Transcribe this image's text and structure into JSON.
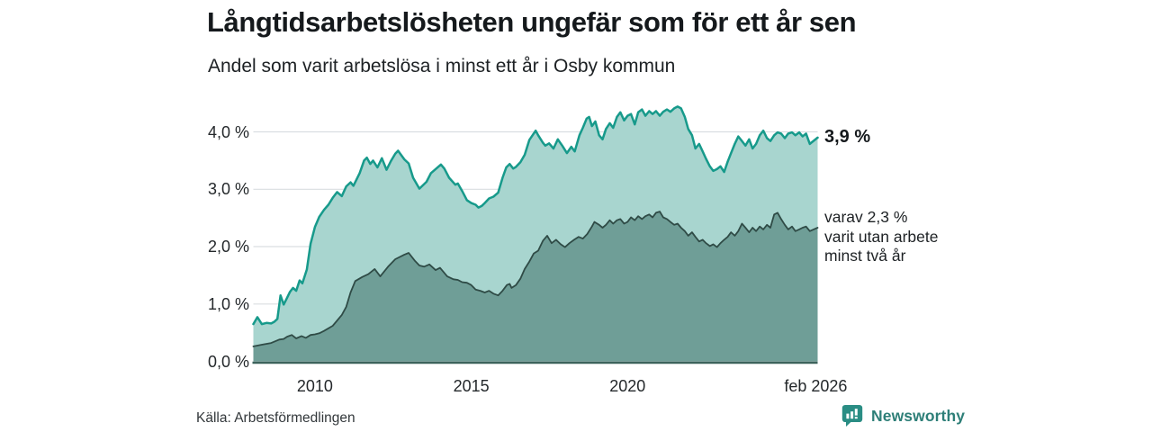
{
  "header": {
    "title": "Långtidsarbetslösheten ungefär som för ett år sen",
    "subtitle": "Andel som varit arbetslösa i minst ett år i Osby kommun"
  },
  "footer": {
    "source": "Källa: Arbetsförmedlingen",
    "brand": "Newsworthy",
    "brand_color": "#2e7f78"
  },
  "chart_data": {
    "type": "area",
    "title": "Andel som varit arbetslösa i minst ett år i Osby kommun",
    "xlabel": "",
    "ylabel": "",
    "xlim": [
      2008.03,
      2026.08
    ],
    "ylim": [
      0,
      4.55
    ],
    "grid": "horizontal",
    "legend_position": "none",
    "colors": {
      "grid": "#dadee1",
      "baseline": "#3d635c",
      "accent_teal": "#179a8b",
      "dark_slate": "#2f4b46"
    },
    "y_ticks": [
      {
        "label": "0,0 %",
        "value": 0
      },
      {
        "label": "1,0 %",
        "value": 1
      },
      {
        "label": "2,0 %",
        "value": 2
      },
      {
        "label": "3,0 %",
        "value": 3
      },
      {
        "label": "4,0 %",
        "value": 4
      }
    ],
    "x_ticks": [
      {
        "label": "2010",
        "value": 2010
      },
      {
        "label": "2015",
        "value": 2015
      },
      {
        "label": "2020",
        "value": 2020
      },
      {
        "label": "feb 2026",
        "value": 2026.02
      }
    ],
    "annotations": {
      "latest_label": "3,9 %",
      "detail": [
        "varav 2,3 %",
        "varit utan arbete",
        "minst två år"
      ]
    },
    "series": [
      {
        "id": "minst-ett-ar",
        "name": "Arbetslösa minst ett år",
        "color": "#179a8b",
        "fill": "#a8d5cf",
        "stroke_width": 2.5,
        "latest_value": 3.9,
        "points": [
          [
            2008.03,
            0.65
          ],
          [
            2008.16,
            0.77
          ],
          [
            2008.3,
            0.65
          ],
          [
            2008.45,
            0.67
          ],
          [
            2008.6,
            0.66
          ],
          [
            2008.7,
            0.69
          ],
          [
            2008.8,
            0.74
          ],
          [
            2008.9,
            1.15
          ],
          [
            2009.0,
            0.99
          ],
          [
            2009.1,
            1.1
          ],
          [
            2009.2,
            1.21
          ],
          [
            2009.3,
            1.28
          ],
          [
            2009.4,
            1.23
          ],
          [
            2009.51,
            1.41
          ],
          [
            2009.6,
            1.36
          ],
          [
            2009.74,
            1.6
          ],
          [
            2009.86,
            2.05
          ],
          [
            2010.0,
            2.34
          ],
          [
            2010.14,
            2.52
          ],
          [
            2010.29,
            2.64
          ],
          [
            2010.43,
            2.73
          ],
          [
            2010.57,
            2.85
          ],
          [
            2010.71,
            2.95
          ],
          [
            2010.86,
            2.88
          ],
          [
            2011.0,
            3.05
          ],
          [
            2011.14,
            3.12
          ],
          [
            2011.23,
            3.06
          ],
          [
            2011.43,
            3.28
          ],
          [
            2011.57,
            3.5
          ],
          [
            2011.66,
            3.55
          ],
          [
            2011.77,
            3.44
          ],
          [
            2011.86,
            3.5
          ],
          [
            2012.0,
            3.38
          ],
          [
            2012.14,
            3.54
          ],
          [
            2012.29,
            3.34
          ],
          [
            2012.43,
            3.49
          ],
          [
            2012.57,
            3.62
          ],
          [
            2012.66,
            3.67
          ],
          [
            2012.86,
            3.52
          ],
          [
            2013.0,
            3.45
          ],
          [
            2013.14,
            3.2
          ],
          [
            2013.34,
            3.01
          ],
          [
            2013.57,
            3.13
          ],
          [
            2013.71,
            3.28
          ],
          [
            2013.86,
            3.35
          ],
          [
            2014.03,
            3.43
          ],
          [
            2014.14,
            3.36
          ],
          [
            2014.29,
            3.2
          ],
          [
            2014.49,
            3.08
          ],
          [
            2014.57,
            3.1
          ],
          [
            2014.71,
            2.97
          ],
          [
            2014.86,
            2.81
          ],
          [
            2015.0,
            2.76
          ],
          [
            2015.14,
            2.73
          ],
          [
            2015.23,
            2.68
          ],
          [
            2015.34,
            2.71
          ],
          [
            2015.43,
            2.76
          ],
          [
            2015.57,
            2.84
          ],
          [
            2015.71,
            2.87
          ],
          [
            2015.86,
            2.94
          ],
          [
            2016.0,
            3.2
          ],
          [
            2016.12,
            3.38
          ],
          [
            2016.23,
            3.44
          ],
          [
            2016.34,
            3.36
          ],
          [
            2016.43,
            3.39
          ],
          [
            2016.57,
            3.47
          ],
          [
            2016.71,
            3.6
          ],
          [
            2016.86,
            3.86
          ],
          [
            2017.06,
            4.02
          ],
          [
            2017.14,
            3.94
          ],
          [
            2017.29,
            3.81
          ],
          [
            2017.37,
            3.76
          ],
          [
            2017.49,
            3.8
          ],
          [
            2017.63,
            3.71
          ],
          [
            2017.77,
            3.87
          ],
          [
            2017.91,
            3.76
          ],
          [
            2018.06,
            3.63
          ],
          [
            2018.2,
            3.74
          ],
          [
            2018.31,
            3.66
          ],
          [
            2018.46,
            3.94
          ],
          [
            2018.57,
            4.07
          ],
          [
            2018.69,
            4.23
          ],
          [
            2018.77,
            4.26
          ],
          [
            2018.86,
            4.1
          ],
          [
            2018.97,
            4.18
          ],
          [
            2019.09,
            3.94
          ],
          [
            2019.2,
            3.87
          ],
          [
            2019.31,
            4.05
          ],
          [
            2019.43,
            4.15
          ],
          [
            2019.54,
            4.07
          ],
          [
            2019.66,
            4.26
          ],
          [
            2019.77,
            4.34
          ],
          [
            2019.89,
            4.2
          ],
          [
            2020.0,
            4.28
          ],
          [
            2020.11,
            4.31
          ],
          [
            2020.23,
            4.13
          ],
          [
            2020.34,
            4.34
          ],
          [
            2020.46,
            4.39
          ],
          [
            2020.57,
            4.28
          ],
          [
            2020.69,
            4.36
          ],
          [
            2020.8,
            4.31
          ],
          [
            2020.91,
            4.36
          ],
          [
            2021.03,
            4.28
          ],
          [
            2021.14,
            4.35
          ],
          [
            2021.26,
            4.39
          ],
          [
            2021.37,
            4.35
          ],
          [
            2021.49,
            4.41
          ],
          [
            2021.6,
            4.44
          ],
          [
            2021.71,
            4.41
          ],
          [
            2021.83,
            4.26
          ],
          [
            2021.94,
            4.05
          ],
          [
            2022.06,
            3.94
          ],
          [
            2022.17,
            3.71
          ],
          [
            2022.29,
            3.79
          ],
          [
            2022.4,
            3.66
          ],
          [
            2022.51,
            3.53
          ],
          [
            2022.63,
            3.4
          ],
          [
            2022.74,
            3.32
          ],
          [
            2022.86,
            3.35
          ],
          [
            2022.97,
            3.4
          ],
          [
            2023.09,
            3.3
          ],
          [
            2023.2,
            3.48
          ],
          [
            2023.31,
            3.63
          ],
          [
            2023.43,
            3.79
          ],
          [
            2023.54,
            3.92
          ],
          [
            2023.66,
            3.84
          ],
          [
            2023.77,
            3.76
          ],
          [
            2023.89,
            3.87
          ],
          [
            2024.0,
            3.71
          ],
          [
            2024.11,
            3.79
          ],
          [
            2024.23,
            3.94
          ],
          [
            2024.34,
            4.02
          ],
          [
            2024.46,
            3.89
          ],
          [
            2024.57,
            3.84
          ],
          [
            2024.69,
            3.94
          ],
          [
            2024.8,
            3.99
          ],
          [
            2024.91,
            3.97
          ],
          [
            2025.03,
            3.89
          ],
          [
            2025.14,
            3.97
          ],
          [
            2025.26,
            3.99
          ],
          [
            2025.37,
            3.94
          ],
          [
            2025.49,
            3.99
          ],
          [
            2025.6,
            3.92
          ],
          [
            2025.71,
            3.97
          ],
          [
            2025.83,
            3.79
          ],
          [
            2026.08,
            3.9
          ]
        ]
      },
      {
        "id": "minst-tva-ar",
        "name": "varav utan arbete minst två år",
        "color": "#2f4b46",
        "fill": "#6f9e97",
        "stroke_width": 1.8,
        "latest_value": 2.3,
        "points": [
          [
            2008.03,
            0.26
          ],
          [
            2008.3,
            0.29
          ],
          [
            2008.6,
            0.32
          ],
          [
            2008.86,
            0.38
          ],
          [
            2009.0,
            0.39
          ],
          [
            2009.11,
            0.43
          ],
          [
            2009.26,
            0.46
          ],
          [
            2009.4,
            0.4
          ],
          [
            2009.57,
            0.44
          ],
          [
            2009.71,
            0.41
          ],
          [
            2009.86,
            0.46
          ],
          [
            2010.0,
            0.47
          ],
          [
            2010.14,
            0.49
          ],
          [
            2010.29,
            0.53
          ],
          [
            2010.57,
            0.62
          ],
          [
            2010.86,
            0.81
          ],
          [
            2011.0,
            0.95
          ],
          [
            2011.14,
            1.2
          ],
          [
            2011.29,
            1.4
          ],
          [
            2011.51,
            1.47
          ],
          [
            2011.71,
            1.52
          ],
          [
            2011.91,
            1.61
          ],
          [
            2012.09,
            1.48
          ],
          [
            2012.34,
            1.65
          ],
          [
            2012.57,
            1.78
          ],
          [
            2012.86,
            1.86
          ],
          [
            2013.0,
            1.89
          ],
          [
            2013.2,
            1.75
          ],
          [
            2013.34,
            1.67
          ],
          [
            2013.49,
            1.65
          ],
          [
            2013.66,
            1.69
          ],
          [
            2013.86,
            1.59
          ],
          [
            2014.0,
            1.63
          ],
          [
            2014.23,
            1.48
          ],
          [
            2014.43,
            1.43
          ],
          [
            2014.57,
            1.42
          ],
          [
            2014.71,
            1.38
          ],
          [
            2014.86,
            1.37
          ],
          [
            2015.0,
            1.33
          ],
          [
            2015.14,
            1.25
          ],
          [
            2015.29,
            1.23
          ],
          [
            2015.43,
            1.2
          ],
          [
            2015.57,
            1.23
          ],
          [
            2015.71,
            1.18
          ],
          [
            2015.86,
            1.15
          ],
          [
            2016.0,
            1.23
          ],
          [
            2016.14,
            1.33
          ],
          [
            2016.23,
            1.35
          ],
          [
            2016.29,
            1.28
          ],
          [
            2016.43,
            1.33
          ],
          [
            2016.57,
            1.44
          ],
          [
            2016.71,
            1.61
          ],
          [
            2016.86,
            1.74
          ],
          [
            2017.0,
            1.88
          ],
          [
            2017.14,
            1.93
          ],
          [
            2017.29,
            2.1
          ],
          [
            2017.43,
            2.19
          ],
          [
            2017.57,
            2.06
          ],
          [
            2017.71,
            2.12
          ],
          [
            2017.86,
            2.04
          ],
          [
            2018.0,
            1.99
          ],
          [
            2018.14,
            2.06
          ],
          [
            2018.29,
            2.12
          ],
          [
            2018.43,
            2.17
          ],
          [
            2018.57,
            2.14
          ],
          [
            2018.71,
            2.22
          ],
          [
            2018.86,
            2.35
          ],
          [
            2018.94,
            2.43
          ],
          [
            2019.09,
            2.38
          ],
          [
            2019.2,
            2.33
          ],
          [
            2019.31,
            2.38
          ],
          [
            2019.43,
            2.46
          ],
          [
            2019.54,
            2.4
          ],
          [
            2019.66,
            2.46
          ],
          [
            2019.77,
            2.48
          ],
          [
            2019.89,
            2.4
          ],
          [
            2020.0,
            2.43
          ],
          [
            2020.11,
            2.51
          ],
          [
            2020.23,
            2.46
          ],
          [
            2020.34,
            2.53
          ],
          [
            2020.46,
            2.48
          ],
          [
            2020.57,
            2.53
          ],
          [
            2020.69,
            2.56
          ],
          [
            2020.8,
            2.51
          ],
          [
            2020.91,
            2.59
          ],
          [
            2021.03,
            2.61
          ],
          [
            2021.14,
            2.51
          ],
          [
            2021.26,
            2.48
          ],
          [
            2021.37,
            2.43
          ],
          [
            2021.49,
            2.38
          ],
          [
            2021.6,
            2.4
          ],
          [
            2021.71,
            2.33
          ],
          [
            2021.83,
            2.27
          ],
          [
            2021.94,
            2.19
          ],
          [
            2022.06,
            2.25
          ],
          [
            2022.17,
            2.17
          ],
          [
            2022.29,
            2.09
          ],
          [
            2022.4,
            2.12
          ],
          [
            2022.51,
            2.06
          ],
          [
            2022.63,
            2.01
          ],
          [
            2022.74,
            2.04
          ],
          [
            2022.86,
            1.99
          ],
          [
            2022.97,
            2.06
          ],
          [
            2023.09,
            2.12
          ],
          [
            2023.2,
            2.17
          ],
          [
            2023.31,
            2.25
          ],
          [
            2023.43,
            2.19
          ],
          [
            2023.54,
            2.27
          ],
          [
            2023.66,
            2.4
          ],
          [
            2023.77,
            2.33
          ],
          [
            2023.89,
            2.25
          ],
          [
            2024.0,
            2.33
          ],
          [
            2024.11,
            2.27
          ],
          [
            2024.23,
            2.35
          ],
          [
            2024.34,
            2.3
          ],
          [
            2024.46,
            2.38
          ],
          [
            2024.57,
            2.33
          ],
          [
            2024.69,
            2.56
          ],
          [
            2024.8,
            2.59
          ],
          [
            2024.91,
            2.48
          ],
          [
            2025.03,
            2.38
          ],
          [
            2025.14,
            2.3
          ],
          [
            2025.26,
            2.35
          ],
          [
            2025.37,
            2.27
          ],
          [
            2025.49,
            2.3
          ],
          [
            2025.6,
            2.33
          ],
          [
            2025.71,
            2.35
          ],
          [
            2025.83,
            2.27
          ],
          [
            2026.08,
            2.33
          ]
        ]
      }
    ]
  }
}
